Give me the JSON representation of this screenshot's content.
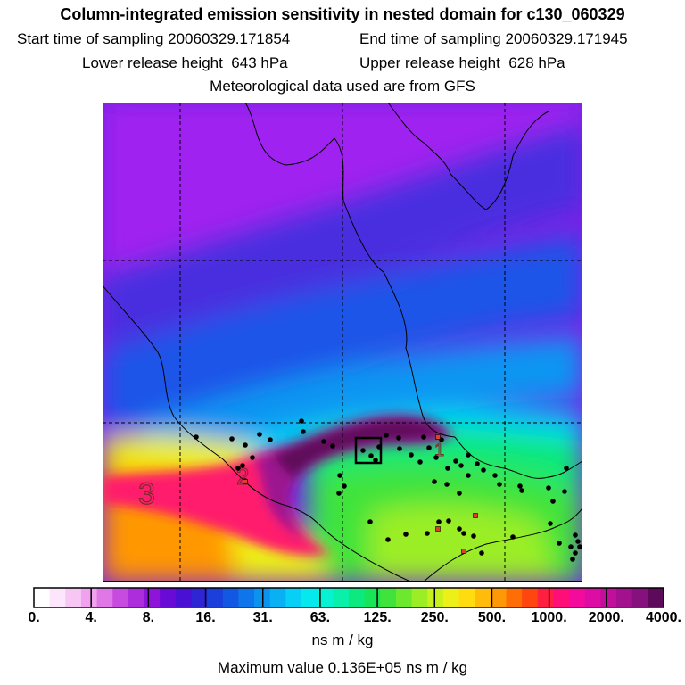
{
  "header": {
    "title": "Column-integrated emission sensitivity in nested domain for c130_060329",
    "start_label": "Start time of sampling",
    "start_value": "20060329.171854",
    "end_label": "End time of sampling",
    "end_value": "20060329.171945",
    "lower_label": "Lower release height",
    "lower_value": "643 hPa",
    "upper_label": "Upper release height",
    "upper_value": "628 hPa",
    "met_note": "Meteorological data used are from GFS"
  },
  "chart_data": {
    "type": "heatmap",
    "map_labels": [
      "3",
      "2",
      "1"
    ],
    "colorbar": {
      "tick_labels": [
        "0.",
        "4.",
        "8.",
        "16.",
        "31.",
        "63.",
        "125.",
        "250.",
        "500.",
        "1000.",
        "2000.",
        "4000."
      ],
      "colors": [
        "#ffffff",
        "#fde6fb",
        "#f8c6f4",
        "#f0a2ee",
        "#df77e7",
        "#c84be0",
        "#ad2cdc",
        "#8f14d9",
        "#6a0ad6",
        "#4a10d4",
        "#2f25d5",
        "#1b3fdb",
        "#1258e2",
        "#0e75ea",
        "#0b93f0",
        "#09b1f4",
        "#06d0f6",
        "#05e9ee",
        "#06f2d3",
        "#08f0aa",
        "#0cea7f",
        "#17e456",
        "#3fe33b",
        "#6ce82e",
        "#9bee25",
        "#c8f01d",
        "#edf018",
        "#ffdc10",
        "#ffbc0a",
        "#ff9806",
        "#ff6e05",
        "#ff4510",
        "#ff1f40",
        "#ff0d78",
        "#f40b9e",
        "#dc0ca5",
        "#c10f9c",
        "#a3118f",
        "#86107d",
        "#5e0a5a"
      ],
      "unit": "ns m / kg"
    },
    "max_value_label": "Maximum value",
    "max_value": "0.136E+05 ns m / kg"
  }
}
